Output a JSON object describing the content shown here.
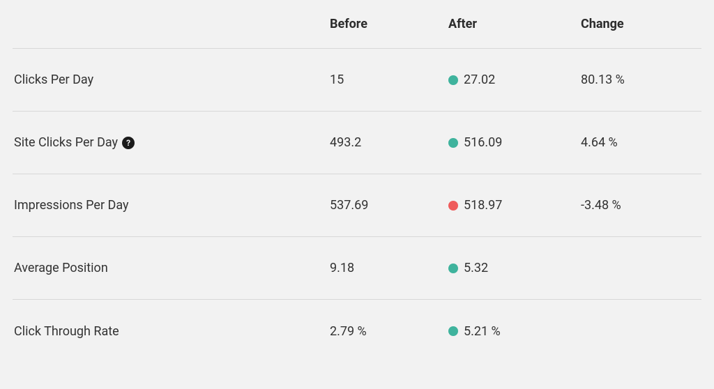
{
  "colors": {
    "background": "#f2f2f2",
    "text": "#333333",
    "divider": "#d8d8d8",
    "dot_green": "#3fb39d",
    "dot_red": "#ef5b5b",
    "help_bg": "#1a1a1a",
    "help_fg": "#f2f2f2"
  },
  "headers": {
    "before": "Before",
    "after": "After",
    "change": "Change"
  },
  "rows": [
    {
      "metric": "Clicks Per Day",
      "has_help": false,
      "before": "15",
      "after_value": "27.02",
      "dot_color": "#3fb39d",
      "change": "80.13 %"
    },
    {
      "metric": "Site Clicks Per Day",
      "has_help": true,
      "before": "493.2",
      "after_value": "516.09",
      "dot_color": "#3fb39d",
      "change": "4.64 %"
    },
    {
      "metric": "Impressions Per Day",
      "has_help": false,
      "before": "537.69",
      "after_value": "518.97",
      "dot_color": "#ef5b5b",
      "change": "-3.48 %"
    },
    {
      "metric": "Average Position",
      "has_help": false,
      "before": "9.18",
      "after_value": "5.32",
      "dot_color": "#3fb39d",
      "change": ""
    },
    {
      "metric": "Click Through Rate",
      "has_help": false,
      "before": "2.79 %",
      "after_value": "5.21 %",
      "dot_color": "#3fb39d",
      "change": ""
    }
  ]
}
